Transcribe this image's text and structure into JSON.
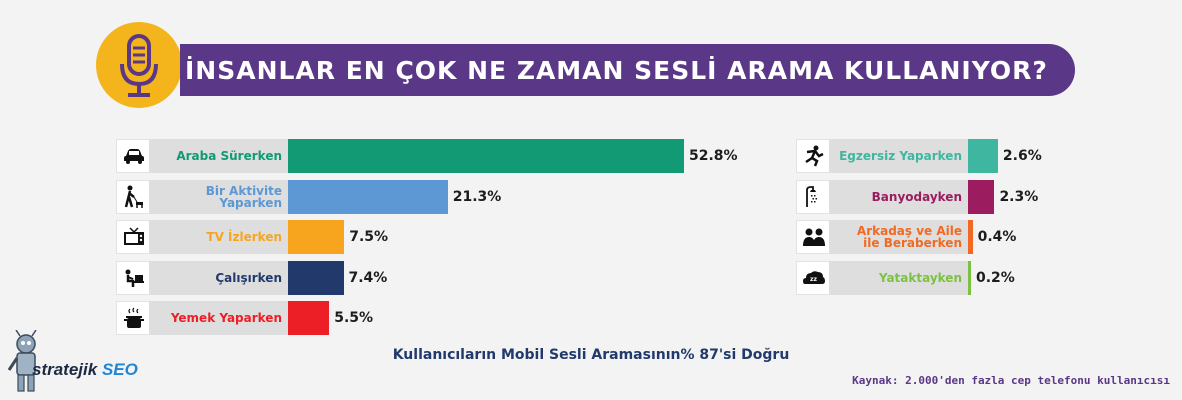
{
  "header": {
    "title": "İNSANLAR EN ÇOK NE ZAMAN SESLİ ARAMA KULLANIYOR?",
    "icon": "microphone-icon"
  },
  "chart_data": [
    {
      "type": "bar",
      "orientation": "horizontal",
      "categories": [
        "Araba Sürerken",
        "Bir Aktivite Yaparken",
        "TV İzlerken",
        "Çalışırken",
        "Yemek Yaparken"
      ],
      "values": [
        52.8,
        21.3,
        7.5,
        7.4,
        5.5
      ],
      "value_labels": [
        "52.8%",
        "21.3%",
        "7.5%",
        "7.4%",
        "5.5%"
      ],
      "colors": [
        "#119a74",
        "#5d98d4",
        "#f7a51e",
        "#223a6b",
        "#ed1f26"
      ],
      "icons": [
        "car-icon",
        "walking-dog-icon",
        "tv-icon",
        "working-at-laptop-icon",
        "cooking-pot-icon"
      ]
    },
    {
      "type": "bar",
      "orientation": "horizontal",
      "categories": [
        "Egzersiz Yaparken",
        "Banyodayken",
        "Arkadaş ve Aile\nile Beraberken",
        "Yataktayken"
      ],
      "values": [
        2.6,
        2.3,
        0.4,
        0.2
      ],
      "value_labels": [
        "2.6%",
        "2.3%",
        "0.4%",
        "0.2%"
      ],
      "colors": [
        "#3fb6a0",
        "#9b1c5f",
        "#f06a23",
        "#7cc242"
      ],
      "icons": [
        "running-icon",
        "shower-icon",
        "people-icon",
        "sleeping-icon"
      ]
    }
  ],
  "subtitle": "Kullanıcıların Mobil Sesli Aramasının% 87'si Doğru",
  "source": "Kaynak: 2.000'den fazla cep telefonu kullanıcısı",
  "logo": {
    "word1": "stratejik",
    "word2": "SEO"
  }
}
